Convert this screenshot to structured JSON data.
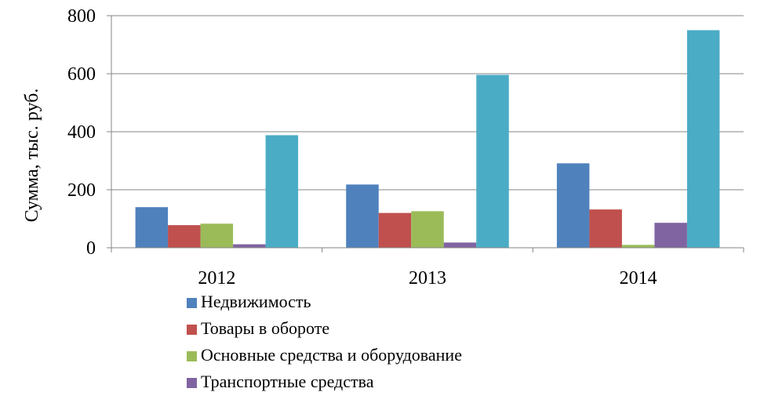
{
  "chart_data": {
    "type": "bar",
    "title": "",
    "xlabel": "",
    "ylabel": "Сумма, тыс. руб.",
    "ylim": [
      0,
      800
    ],
    "yticks": [
      0,
      200,
      400,
      600,
      800
    ],
    "grid": true,
    "legend_position": "bottom",
    "categories": [
      "2012",
      "2013",
      "2014"
    ],
    "series": [
      {
        "name": "Недвижимость",
        "color": "#4F81BD",
        "values": [
          140,
          218,
          291
        ]
      },
      {
        "name": "Товары в обороте",
        "color": "#C0504D",
        "values": [
          78,
          120,
          132
        ]
      },
      {
        "name": "Основные средства и оборудование",
        "color": "#9BBB59",
        "values": [
          83,
          126,
          10
        ]
      },
      {
        "name": "Транспортные средства",
        "color": "#8064A2",
        "values": [
          12,
          18,
          86
        ]
      },
      {
        "name": "",
        "color": "#4BACC6",
        "values": [
          388,
          596,
          750
        ]
      }
    ]
  }
}
